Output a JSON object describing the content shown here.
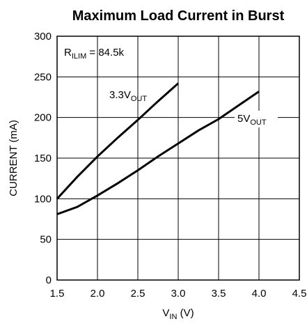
{
  "chart_data": {
    "type": "line",
    "title": "Maximum Load Current in Burst",
    "ylabel": "CURRENT (mA)",
    "xlabel": {
      "base": "V",
      "sub": "IN",
      "rest": " (V)"
    },
    "annotation": {
      "base": "R",
      "sub": "ILIM",
      "rest": " = 84.5k"
    },
    "xlim": [
      1.5,
      4.5
    ],
    "xticks": [
      1.5,
      {
        "value": 2,
        "label": "2.0"
      },
      2.5,
      {
        "value": 3,
        "label": "3.0"
      },
      3.5,
      {
        "value": 4,
        "label": "4.0"
      },
      4.5
    ],
    "ylim": [
      0,
      300
    ],
    "yticks": [
      0,
      50,
      100,
      150,
      200,
      250,
      300
    ],
    "grid": true,
    "series": [
      {
        "name": {
          "base": "3.3V",
          "sub": "OUT"
        },
        "color": "#000000",
        "x": [
          1.5,
          1.75,
          2.0,
          2.25,
          2.5,
          2.75,
          3.0
        ],
        "values": [
          100,
          127,
          152,
          175,
          197,
          220,
          242
        ]
      },
      {
        "name": {
          "base": "5V",
          "sub": "OUT"
        },
        "color": "#000000",
        "x": [
          1.5,
          1.75,
          2.0,
          2.25,
          2.5,
          2.75,
          3.0,
          3.25,
          3.5,
          3.75,
          4.0
        ],
        "values": [
          81,
          90,
          104,
          119,
          135,
          152,
          168,
          184,
          198,
          215,
          232
        ]
      }
    ]
  }
}
